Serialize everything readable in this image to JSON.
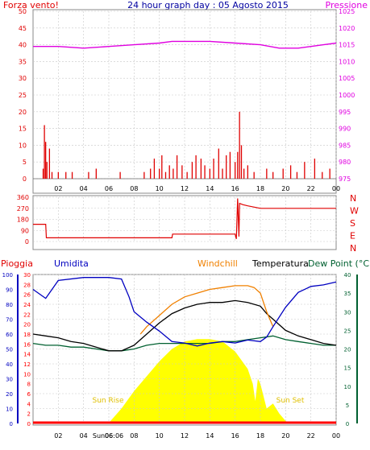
{
  "header": {
    "wind_label": "Forza vento!",
    "title": "24 hour graph day : 05 Agosto 2015",
    "pressure_label": "Pressione"
  },
  "colors": {
    "wind": "#e00000",
    "pressure": "#e000e0",
    "title": "#0000a0",
    "humidity": "#0000c0",
    "windchill": "#f08000",
    "temperature": "#000000",
    "dewpoint": "#006030",
    "rain": "#ff0000",
    "solar": "#ffff00",
    "grid": "#c8c8c8"
  },
  "legend_bottom": {
    "rain": "Pioggia",
    "humidity": "Umidita",
    "windchill": "Windchill",
    "temperature": "Temperatura",
    "dewpoint": "Dew Point (°C"
  },
  "annotations": {
    "sunrise": "Sun Rise",
    "sunset": "Sun Set",
    "sunrise_tick": "Sun06:06"
  },
  "chart_data": [
    {
      "type": "bar",
      "name": "wind-pressure",
      "x_ticks": [
        "02",
        "04",
        "06",
        "08",
        "10",
        "12",
        "14",
        "16",
        "18",
        "20",
        "22",
        "00"
      ],
      "left_ticks": [
        "0",
        "5",
        "10",
        "15",
        "20",
        "25",
        "30",
        "35",
        "40",
        "45",
        "50"
      ],
      "ylim": [
        0,
        50
      ],
      "right_ticks": [
        "975",
        "980",
        "985",
        "990",
        "995",
        "1000",
        "1005",
        "1010",
        "1015",
        "1020",
        "1025"
      ],
      "y2lim": [
        975,
        1025
      ],
      "pressure": {
        "x": [
          0,
          2,
          4,
          6,
          8,
          10,
          11,
          12,
          14,
          16,
          18,
          19.5,
          21,
          22,
          23,
          24
        ],
        "values": [
          1014.5,
          1014.5,
          1014,
          1014.5,
          1015,
          1015.5,
          1016,
          1016,
          1016,
          1015.5,
          1015,
          1014,
          1014,
          1014.5,
          1015,
          1015.5
        ]
      },
      "wind": {
        "x": [
          0.8,
          0.9,
          1.0,
          1.1,
          1.3,
          1.5,
          2.0,
          2.6,
          3.1,
          4.4,
          5.0,
          6.9,
          8.8,
          9.3,
          9.6,
          10.0,
          10.2,
          10.5,
          10.8,
          11.1,
          11.4,
          11.8,
          12.2,
          12.6,
          12.9,
          13.3,
          13.6,
          14.0,
          14.3,
          14.7,
          15.0,
          15.3,
          15.6,
          16.0,
          16.2,
          16.35,
          16.5,
          16.7,
          17.0,
          17.5,
          18.5,
          19.0,
          19.8,
          20.4,
          20.9,
          21.5,
          22.3,
          22.9,
          23.5
        ],
        "values": [
          3,
          16,
          11,
          5,
          9,
          2,
          2,
          2,
          2,
          2,
          3,
          2,
          2,
          3,
          6,
          3,
          7,
          2,
          4,
          3,
          7,
          4,
          2,
          5,
          7,
          6,
          4,
          3,
          6,
          9,
          3,
          7,
          8,
          5,
          8,
          20,
          10,
          3,
          4,
          2,
          3,
          2,
          3,
          4,
          2,
          5,
          6,
          2,
          3
        ]
      }
    },
    {
      "type": "line",
      "name": "wind-direction",
      "y_ticks": [
        "360",
        "270",
        "180",
        "90",
        "0"
      ],
      "ylim": [
        0,
        360
      ],
      "right_labels": [
        "N",
        "W",
        "S",
        "E",
        "N"
      ],
      "x": [
        0,
        1,
        1.05,
        2,
        4,
        6,
        8,
        10,
        11,
        11.05,
        13,
        15,
        16,
        16.1,
        16.2,
        16.3,
        16.35,
        16.6,
        17,
        18,
        20,
        22,
        24
      ],
      "values": [
        140,
        140,
        30,
        30,
        30,
        30,
        30,
        30,
        30,
        60,
        60,
        60,
        60,
        20,
        350,
        40,
        310,
        300,
        290,
        270,
        270,
        270,
        270
      ]
    },
    {
      "type": "line",
      "name": "temperature-humidity-rain",
      "x_ticks": [
        "02",
        "04",
        "06",
        "08",
        "10",
        "12",
        "14",
        "16",
        "18",
        "20",
        "22",
        "00"
      ],
      "humidity_ticks": [
        "0",
        "10",
        "20",
        "30",
        "40",
        "50",
        "60",
        "70",
        "80",
        "90",
        "100"
      ],
      "humidity_lim": [
        0,
        100
      ],
      "rain_ticks": [
        "0",
        "2",
        "4",
        "6",
        "8",
        "10",
        "12",
        "14",
        "16",
        "18",
        "20",
        "22",
        "24",
        "26",
        "28",
        "30"
      ],
      "rain_lim": [
        0,
        30
      ],
      "temp_ticks": [
        "0",
        "5",
        "10",
        "15",
        "20",
        "25",
        "30",
        "35",
        "40"
      ],
      "temp_lim": [
        0,
        40
      ],
      "humidity": {
        "x": [
          0,
          1,
          1.5,
          2,
          4,
          6,
          7,
          7.6,
          8,
          9,
          10,
          11,
          12,
          13,
          14,
          15,
          16,
          17,
          18,
          18.5,
          19,
          20,
          21,
          22,
          23,
          24
        ],
        "values": [
          90,
          84,
          90,
          96,
          98,
          98,
          97,
          85,
          75,
          68,
          62,
          55,
          54,
          52,
          54,
          55,
          54,
          56,
          55,
          58,
          65,
          78,
          88,
          92,
          93,
          95
        ]
      },
      "temperature": {
        "x": [
          0,
          1,
          2,
          3,
          4,
          5,
          6,
          7,
          8,
          9,
          10,
          11,
          12,
          13,
          14,
          15,
          16,
          17,
          18,
          18.5,
          19,
          20,
          21,
          22,
          23,
          24
        ],
        "values": [
          24,
          23.5,
          23,
          22,
          21.5,
          20.5,
          19.5,
          19.5,
          21,
          24,
          27,
          29.5,
          31,
          32,
          32.5,
          32.5,
          33,
          32.5,
          31.5,
          29.5,
          28,
          25,
          23.5,
          22.5,
          21.5,
          21
        ]
      },
      "windchill": {
        "x": [
          8.5,
          9,
          10,
          11,
          12,
          13,
          14,
          15,
          16,
          17,
          17.5,
          18,
          18.5,
          19
        ],
        "values": [
          24,
          26,
          29,
          32,
          34,
          35,
          36,
          36.5,
          37,
          37,
          36.5,
          35,
          30,
          26
        ]
      },
      "dewpoint": {
        "x": [
          0,
          1,
          2,
          3,
          4,
          5,
          6,
          7,
          8,
          9,
          10,
          11,
          12,
          13,
          14,
          15,
          16,
          17,
          18,
          19,
          20,
          21,
          22,
          23,
          24
        ],
        "values": [
          21.5,
          21,
          21,
          20.5,
          20.5,
          20,
          19.5,
          19.5,
          20,
          21,
          21.5,
          21.5,
          21.5,
          21.5,
          21.5,
          22,
          22,
          22.5,
          23,
          23.5,
          22.5,
          22,
          21.5,
          21,
          21
        ]
      },
      "solar": {
        "x": [
          0,
          5.5,
          6.1,
          7,
          8,
          9,
          10,
          11,
          12,
          13,
          14,
          15,
          16,
          17,
          17.4,
          17.6,
          17.8,
          18,
          18.5,
          19,
          19.5,
          20,
          20.3,
          24
        ],
        "values": [
          0,
          0,
          0.4,
          3,
          6.5,
          9.5,
          12.5,
          15,
          16.5,
          17,
          17,
          16.5,
          14.5,
          11,
          8,
          4.5,
          9,
          8,
          3,
          4,
          2,
          0.5,
          0,
          0
        ]
      },
      "rain": {
        "x": [
          0,
          24
        ],
        "values": [
          0,
          0
        ]
      }
    }
  ]
}
